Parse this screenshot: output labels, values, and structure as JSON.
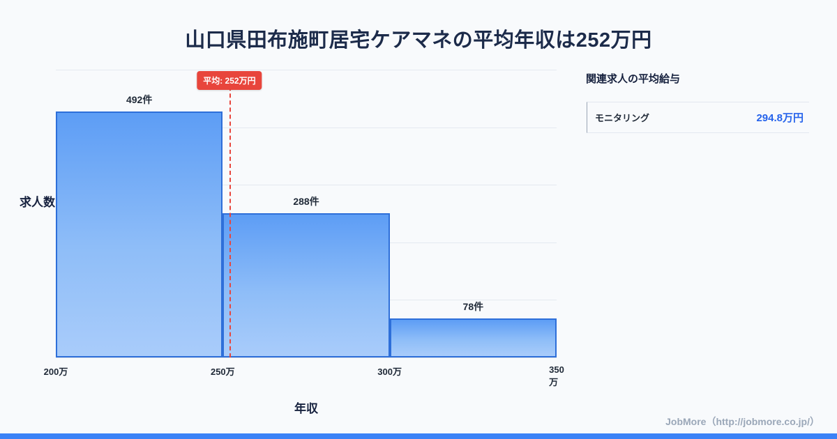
{
  "title": "山口県田布施町居宅ケアマネの平均年収は252万円",
  "chart_data": {
    "type": "bar",
    "title": "山口県田布施町居宅ケアマネの平均年収は252万円",
    "categories": [
      "200万-250万",
      "250万-300万",
      "300万-350万"
    ],
    "values": [
      492,
      288,
      78
    ],
    "bar_labels": [
      "492件",
      "288件",
      "78件"
    ],
    "x_ticks": [
      "200万",
      "250万",
      "300万",
      "350万"
    ],
    "x_range": [
      200,
      350
    ],
    "ylim": [
      0,
      575
    ],
    "gridline_intervals": 5,
    "xlabel": "年収",
    "ylabel": "求人数",
    "grid": true,
    "legend": "none",
    "average": {
      "value": 252,
      "label": "平均: 252万円"
    },
    "colors": {
      "bar_top": "#5d9df5",
      "bar_bottom": "#a9ccfa",
      "bar_border": "#2e6fd9",
      "average_line": "#e8453c",
      "value_text": "#2563eb",
      "accent_strip": "#3b82f6",
      "title_text": "#1c2b4a"
    }
  },
  "side_panel": {
    "heading": "関連求人の平均給与",
    "rows": [
      {
        "label": "モニタリング",
        "value": "294.8万円"
      }
    ]
  },
  "footer": {
    "credit": "JobMore（http://jobmore.co.jp/）"
  }
}
